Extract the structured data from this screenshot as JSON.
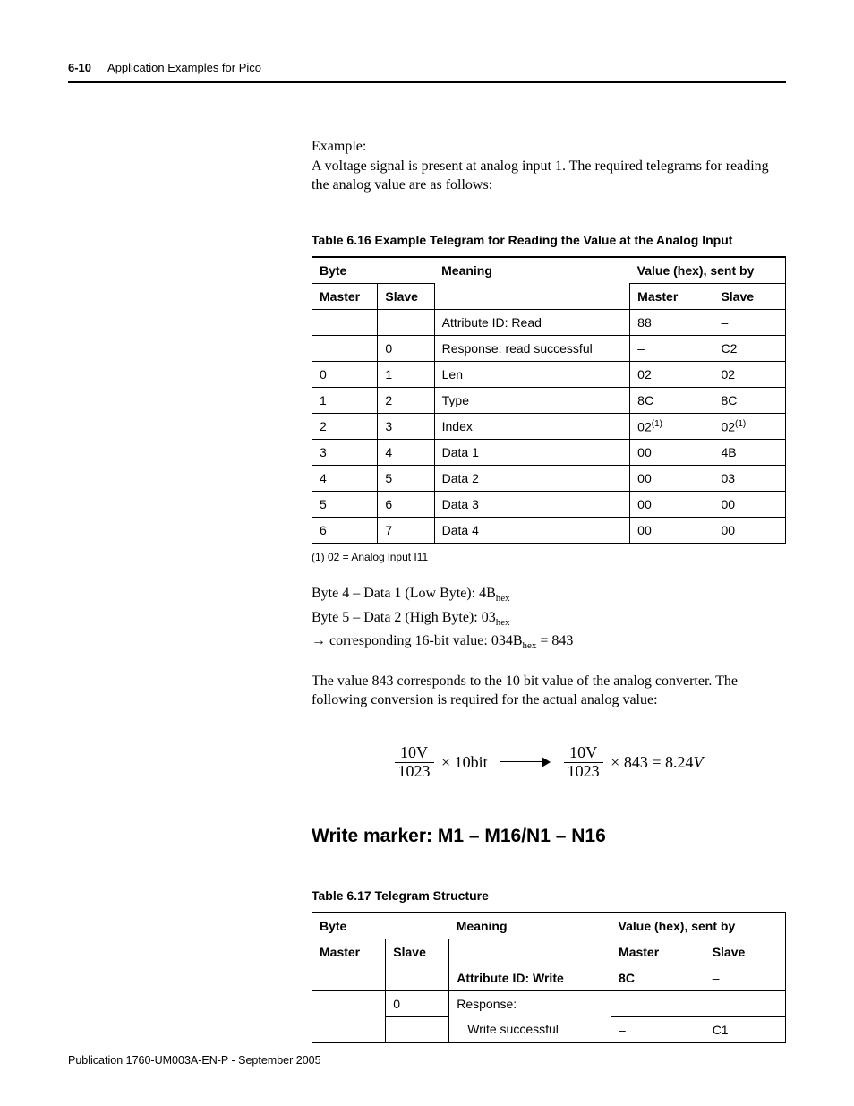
{
  "header": {
    "page_number": "6-10",
    "title": "Application Examples for Pico"
  },
  "intro": {
    "example_label": "Example:",
    "example_text": "A voltage signal is present at analog input 1. The required telegrams for reading the analog value are as follows:"
  },
  "table1": {
    "caption": "Table 6.16 Example Telegram for Reading the Value at the Analog Input",
    "h_byte": "Byte",
    "h_meaning": "Meaning",
    "h_value": "Value (hex), sent by",
    "h_master": "Master",
    "h_slave": "Slave",
    "rows": [
      {
        "m": "",
        "s": "",
        "meaning": "Attribute ID: Read",
        "vm": "88",
        "vs": "–"
      },
      {
        "m": "",
        "s": "0",
        "meaning": "Response: read successful",
        "vm": "–",
        "vs": "C2"
      },
      {
        "m": "0",
        "s": "1",
        "meaning": "Len",
        "vm": "02",
        "vs": "02"
      },
      {
        "m": "1",
        "s": "2",
        "meaning": "Type",
        "vm": "8C",
        "vs": "8C"
      },
      {
        "m": "2",
        "s": "3",
        "meaning": "Index",
        "vm": "02",
        "vs": "02",
        "sup": "(1)"
      },
      {
        "m": "3",
        "s": "4",
        "meaning": "Data 1",
        "vm": "00",
        "vs": "4B"
      },
      {
        "m": "4",
        "s": "5",
        "meaning": "Data 2",
        "vm": "00",
        "vs": "03"
      },
      {
        "m": "5",
        "s": "6",
        "meaning": "Data 3",
        "vm": "00",
        "vs": "00"
      },
      {
        "m": "6",
        "s": "7",
        "meaning": "Data 4",
        "vm": "00",
        "vs": "00"
      }
    ],
    "footnote": "(1)   02 = Analog input I11"
  },
  "bytes_explain": {
    "line1a": "Byte 4 – Data 1 (Low Byte): 4B",
    "line1b": "hex",
    "line2a": "Byte 5 – Data 2 (High Byte): 03",
    "line2b": "hex",
    "line3a": "→ corresponding 16-bit value: 034B",
    "line3b": "hex",
    "line3c": " = 843"
  },
  "explain2": "The value 843 corresponds to the 10 bit value of the analog converter. The following conversion is required for the actual analog value:",
  "equation": {
    "num1": "10V",
    "den1": "1023",
    "mid1": "× 10bit",
    "num2": "10V",
    "den2": "1023",
    "mid2": "× 843 = 8.24",
    "unit": "V"
  },
  "section_heading": "Write marker: M1 – M16/N1 – N16",
  "table2": {
    "caption": "Table 6.17 Telegram Structure",
    "h_byte": "Byte",
    "h_meaning": "Meaning",
    "h_value": "Value (hex), sent by",
    "h_master": "Master",
    "h_slave": "Slave",
    "rows": [
      {
        "m": "",
        "s": "",
        "meaning": "Attribute ID: Write",
        "bold": true,
        "vm": "8C",
        "vs": "–"
      },
      {
        "m": "",
        "s": "0",
        "meaning": "Response:",
        "vm": "",
        "vs": ""
      },
      {
        "m": "",
        "s": "",
        "meaning": "Write successful",
        "indent": true,
        "vm": "–",
        "vs": "C1"
      }
    ]
  },
  "footer": "Publication 1760-UM003A-EN-P - September 2005"
}
